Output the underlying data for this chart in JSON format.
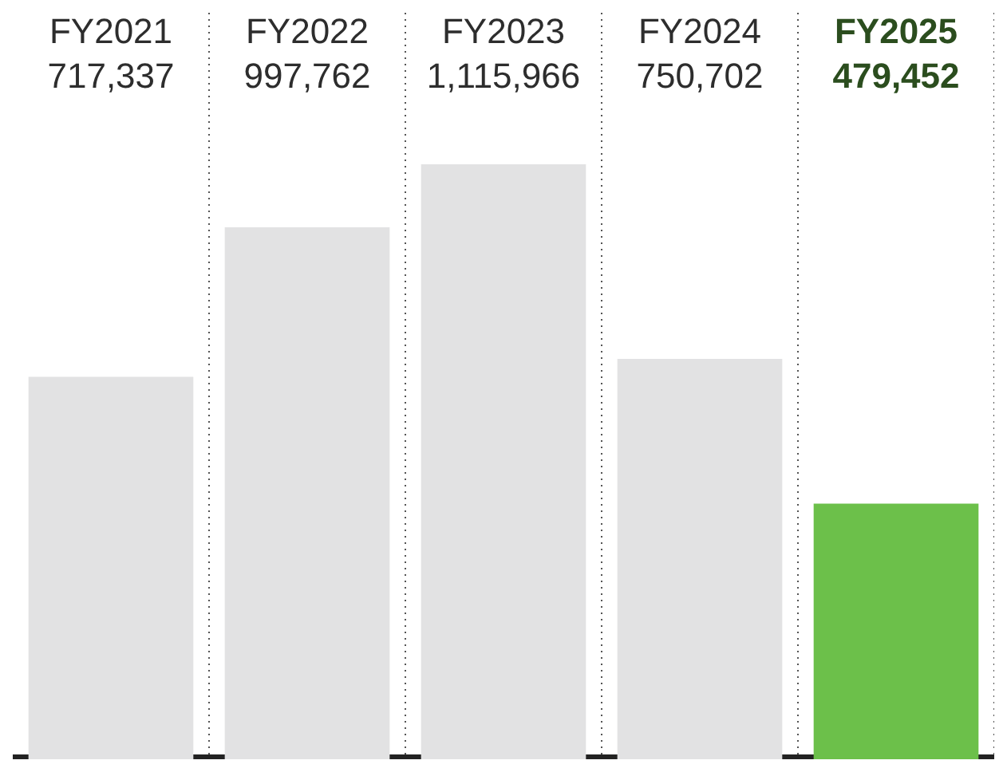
{
  "chart_data": {
    "type": "bar",
    "categories": [
      "FY2021",
      "FY2022",
      "FY2023",
      "FY2024",
      "FY2025"
    ],
    "values": [
      717337,
      997762,
      1115966,
      750702,
      479452
    ],
    "colors": [
      "#e2e2e3",
      "#e2e2e3",
      "#e2e2e3",
      "#e2e2e3",
      "#6cc04a"
    ],
    "value_labels": [
      "717,337",
      "997,762",
      "1,115,966",
      "750,702",
      "479,452"
    ],
    "grid": "x"
  }
}
